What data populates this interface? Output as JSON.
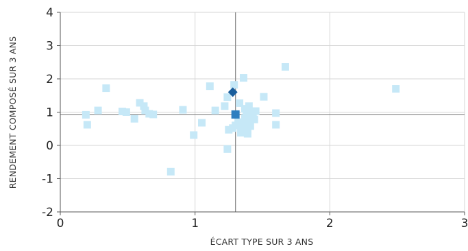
{
  "chart_data": {
    "type": "scatter",
    "title": "",
    "xlabel": "ÉCART TYPE SUR 3 ANS",
    "ylabel": "RENDEMENT COMPOSÉ SUR 3 ANS",
    "xlim": [
      0,
      3
    ],
    "ylim": [
      -2,
      4
    ],
    "x_ticks": [
      0,
      1,
      2,
      3
    ],
    "y_ticks": [
      -2,
      -1,
      0,
      1,
      2,
      3,
      4
    ],
    "x_tick_labels": [
      "0",
      "1",
      "2",
      "3"
    ],
    "y_tick_labels": [
      "-2",
      "-1",
      "0",
      "1",
      "2",
      "3",
      "4"
    ],
    "grid": true,
    "reference_lines": {
      "x": 1.3,
      "y": 0.93
    },
    "series": [
      {
        "marker": "square",
        "color": "#c6e8f7",
        "points": [
          {
            "x": 0.19,
            "y": 0.92
          },
          {
            "x": 0.2,
            "y": 0.62
          },
          {
            "x": 0.28,
            "y": 1.05
          },
          {
            "x": 0.34,
            "y": 1.72
          },
          {
            "x": 0.46,
            "y": 1.02
          },
          {
            "x": 0.49,
            "y": 1.0
          },
          {
            "x": 0.55,
            "y": 0.8
          },
          {
            "x": 0.59,
            "y": 1.28
          },
          {
            "x": 0.62,
            "y": 1.18
          },
          {
            "x": 0.63,
            "y": 1.05
          },
          {
            "x": 0.66,
            "y": 0.95
          },
          {
            "x": 0.69,
            "y": 0.93
          },
          {
            "x": 0.82,
            "y": -0.79
          },
          {
            "x": 0.91,
            "y": 1.07
          },
          {
            "x": 0.99,
            "y": 0.31
          },
          {
            "x": 1.05,
            "y": 0.68
          },
          {
            "x": 1.11,
            "y": 1.78
          },
          {
            "x": 1.15,
            "y": 1.05
          },
          {
            "x": 1.22,
            "y": 1.18
          },
          {
            "x": 1.24,
            "y": 1.45
          },
          {
            "x": 1.24,
            "y": -0.11
          },
          {
            "x": 1.25,
            "y": 0.47
          },
          {
            "x": 1.28,
            "y": 0.52
          },
          {
            "x": 1.29,
            "y": 1.82
          },
          {
            "x": 1.3,
            "y": 0.6
          },
          {
            "x": 1.32,
            "y": 0.7
          },
          {
            "x": 1.33,
            "y": 1.27
          },
          {
            "x": 1.34,
            "y": 0.38
          },
          {
            "x": 1.35,
            "y": 0.5
          },
          {
            "x": 1.36,
            "y": 2.03
          },
          {
            "x": 1.36,
            "y": 0.62
          },
          {
            "x": 1.37,
            "y": 0.82
          },
          {
            "x": 1.37,
            "y": 1.1
          },
          {
            "x": 1.38,
            "y": 0.55
          },
          {
            "x": 1.38,
            "y": 0.95
          },
          {
            "x": 1.39,
            "y": 0.45
          },
          {
            "x": 1.39,
            "y": 0.35
          },
          {
            "x": 1.4,
            "y": 0.7
          },
          {
            "x": 1.4,
            "y": 1.18
          },
          {
            "x": 1.41,
            "y": 0.58
          },
          {
            "x": 1.42,
            "y": 0.88
          },
          {
            "x": 1.43,
            "y": 0.98
          },
          {
            "x": 1.44,
            "y": 0.78
          },
          {
            "x": 1.45,
            "y": 1.03
          },
          {
            "x": 1.51,
            "y": 1.46
          },
          {
            "x": 1.6,
            "y": 0.97
          },
          {
            "x": 1.6,
            "y": 0.62
          },
          {
            "x": 1.67,
            "y": 2.36
          },
          {
            "x": 2.49,
            "y": 1.7
          }
        ]
      },
      {
        "marker": "square",
        "color": "#2e7fc0",
        "points": [
          {
            "x": 1.3,
            "y": 0.93
          }
        ]
      },
      {
        "marker": "diamond",
        "color": "#1a5e9c",
        "points": [
          {
            "x": 1.28,
            "y": 1.6
          }
        ]
      }
    ]
  },
  "style": {
    "grid_color": "#d6d6d6",
    "reference_line_color": "#8c8c8c",
    "axis_color": "#555555"
  }
}
